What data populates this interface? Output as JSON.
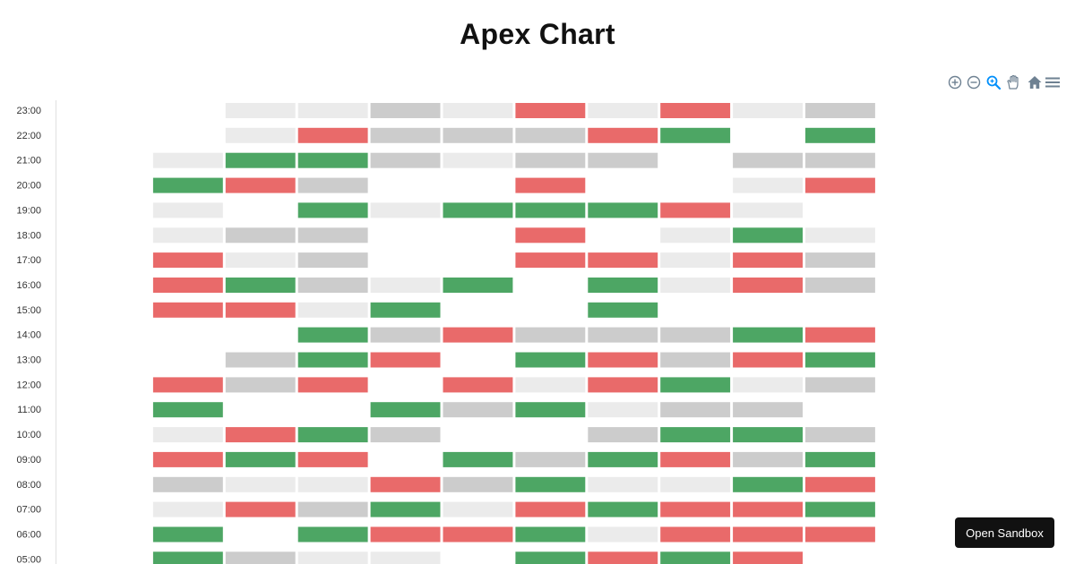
{
  "title": "Apex Chart",
  "sandbox_label": "Open Sandbox",
  "toolbar": {
    "icons": [
      "zoom-in-icon",
      "zoom-out-icon",
      "selection-zoom-icon",
      "pan-hand-icon",
      "home-reset-icon",
      "menu-icon"
    ],
    "active": "selection-zoom-icon",
    "accent": "#008FFB",
    "icon_color": "#6E8192"
  },
  "chart_data": {
    "type": "heatmap",
    "title": "Apex Chart",
    "xlabel": "",
    "ylabel": "",
    "legend": "none",
    "grid": false,
    "levels": [
      {
        "code": 0,
        "meaning": "empty",
        "color": "#FFFFFF"
      },
      {
        "code": 1,
        "meaning": "light",
        "color": "#EBEBEB"
      },
      {
        "code": 2,
        "meaning": "neutral",
        "color": "#CCCCCC"
      },
      {
        "code": 3,
        "meaning": "negative",
        "color": "#E96A6A"
      },
      {
        "code": 4,
        "meaning": "positive",
        "color": "#4DA664"
      }
    ],
    "columns": 10,
    "rows": [
      {
        "label": "23:00",
        "values": [
          0,
          0,
          1,
          1,
          2,
          1,
          3,
          1,
          3,
          1,
          2
        ]
      },
      {
        "label": "22:00",
        "values": [
          0,
          0,
          1,
          3,
          2,
          2,
          2,
          3,
          4,
          0,
          4
        ]
      },
      {
        "label": "21:00",
        "values": [
          0,
          1,
          4,
          4,
          2,
          1,
          2,
          2,
          0,
          2,
          2
        ]
      },
      {
        "label": "20:00",
        "values": [
          0,
          4,
          3,
          2,
          0,
          0,
          3,
          0,
          0,
          1,
          3
        ]
      },
      {
        "label": "19:00",
        "values": [
          0,
          1,
          0,
          4,
          1,
          4,
          4,
          4,
          3,
          1,
          0
        ]
      },
      {
        "label": "18:00",
        "values": [
          0,
          1,
          2,
          2,
          0,
          0,
          3,
          0,
          1,
          4,
          1
        ]
      },
      {
        "label": "17:00",
        "values": [
          0,
          3,
          1,
          2,
          0,
          0,
          3,
          3,
          1,
          3,
          2
        ]
      },
      {
        "label": "16:00",
        "values": [
          0,
          3,
          4,
          2,
          1,
          4,
          0,
          4,
          1,
          3,
          2
        ]
      },
      {
        "label": "15:00",
        "values": [
          0,
          3,
          3,
          1,
          4,
          0,
          0,
          4,
          0,
          0,
          0
        ]
      },
      {
        "label": "14:00",
        "values": [
          0,
          0,
          0,
          4,
          2,
          3,
          2,
          2,
          2,
          4,
          3
        ]
      },
      {
        "label": "13:00",
        "values": [
          0,
          0,
          2,
          4,
          3,
          0,
          4,
          3,
          2,
          3,
          4
        ]
      },
      {
        "label": "12:00",
        "values": [
          0,
          3,
          2,
          3,
          0,
          3,
          1,
          3,
          4,
          1,
          2
        ]
      },
      {
        "label": "11:00",
        "values": [
          0,
          4,
          0,
          0,
          4,
          2,
          4,
          1,
          2,
          2,
          0
        ]
      },
      {
        "label": "10:00",
        "values": [
          0,
          1,
          3,
          4,
          2,
          0,
          0,
          2,
          4,
          4,
          2
        ]
      },
      {
        "label": "09:00",
        "values": [
          0,
          3,
          4,
          3,
          0,
          4,
          2,
          4,
          3,
          2,
          4
        ]
      },
      {
        "label": "08:00",
        "values": [
          0,
          2,
          1,
          1,
          3,
          2,
          4,
          1,
          1,
          4,
          3
        ]
      },
      {
        "label": "07:00",
        "values": [
          0,
          1,
          3,
          2,
          4,
          1,
          3,
          4,
          3,
          3,
          4
        ]
      },
      {
        "label": "06:00",
        "values": [
          0,
          4,
          0,
          4,
          3,
          3,
          4,
          1,
          3,
          3,
          3
        ]
      },
      {
        "label": "05:00",
        "values": [
          0,
          4,
          2,
          1,
          1,
          0,
          4,
          3,
          4,
          3,
          0
        ]
      }
    ]
  }
}
